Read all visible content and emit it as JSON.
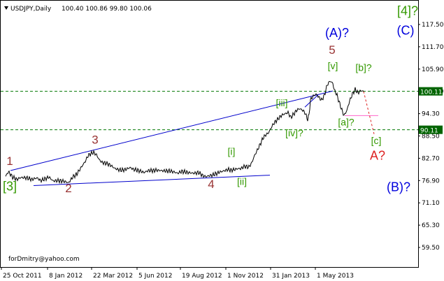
{
  "header": {
    "symbol": "USDJPY,Daily",
    "ohlc": "100.40 100.86 99.80 100.06"
  },
  "watermark": "forDmitry@yahoo.com",
  "colors": {
    "background": "#ffffff",
    "price_line": "#000000",
    "trendline": "#0000cc",
    "level_line": "#007700",
    "level_tag_bg": "#006400",
    "wave_green": "#339900",
    "wave_red": "#993333",
    "wave_blue": "#0000dd",
    "forecast_red": "#dd2222",
    "magenta": "#ff66cc"
  },
  "chart_data": {
    "type": "line",
    "price_axis": {
      "min": 56.0,
      "max": 121.5,
      "ticks": [
        "117.50",
        "111.70",
        "105.90",
        "100.10",
        "94.30",
        "88.50",
        "82.70",
        "76.90",
        "71.10",
        "65.30",
        "59.50"
      ]
    },
    "time_axis": {
      "labels": [
        "25 Oct 2011",
        "8 Jan 2012",
        "22 Mar 2012",
        "5 Jun 2012",
        "19 Aug 2012",
        "1 Nov 2012",
        "31 Jan 2013",
        "1 May 2013"
      ]
    },
    "series": [
      {
        "values": [
          [
            0,
            78.0
          ],
          [
            4,
            79.2
          ],
          [
            10,
            77.8
          ],
          [
            16,
            77.2
          ],
          [
            22,
            77.7
          ],
          [
            30,
            77.6
          ],
          [
            38,
            77.2
          ],
          [
            45,
            77.6
          ],
          [
            50,
            76.9
          ],
          [
            56,
            77.3
          ],
          [
            62,
            77.8
          ],
          [
            68,
            76.8
          ],
          [
            74,
            76.9
          ],
          [
            80,
            76.8
          ],
          [
            86,
            76.6
          ],
          [
            90,
            76.3
          ],
          [
            96,
            77.8
          ],
          [
            102,
            78.6
          ],
          [
            108,
            80.3
          ],
          [
            114,
            81.9
          ],
          [
            118,
            83.4
          ],
          [
            122,
            83.9
          ],
          [
            126,
            84.2
          ],
          [
            130,
            83.6
          ],
          [
            134,
            82.3
          ],
          [
            138,
            81.6
          ],
          [
            144,
            81.4
          ],
          [
            150,
            80.9
          ],
          [
            156,
            80.1
          ],
          [
            160,
            79.8
          ],
          [
            166,
            79.6
          ],
          [
            172,
            79.8
          ],
          [
            178,
            80.3
          ],
          [
            182,
            79.9
          ],
          [
            186,
            79.7
          ],
          [
            192,
            79.4
          ],
          [
            198,
            79.0
          ],
          [
            204,
            79.5
          ],
          [
            210,
            79.5
          ],
          [
            216,
            79.6
          ],
          [
            222,
            79.5
          ],
          [
            228,
            79.4
          ],
          [
            234,
            79.4
          ],
          [
            240,
            79.2
          ],
          [
            246,
            78.8
          ],
          [
            252,
            79.3
          ],
          [
            258,
            79.1
          ],
          [
            264,
            78.9
          ],
          [
            270,
            78.8
          ],
          [
            276,
            79.0
          ],
          [
            282,
            78.2
          ],
          [
            286,
            77.9
          ],
          [
            290,
            78.1
          ],
          [
            295,
            78.3
          ],
          [
            300,
            78.6
          ],
          [
            306,
            79.1
          ],
          [
            312,
            79.4
          ],
          [
            318,
            79.8
          ],
          [
            322,
            79.6
          ],
          [
            326,
            79.7
          ],
          [
            332,
            80.0
          ],
          [
            336,
            80.0
          ],
          [
            342,
            80.6
          ],
          [
            348,
            80.4
          ],
          [
            352,
            81.5
          ],
          [
            356,
            83.4
          ],
          [
            360,
            84.8
          ],
          [
            364,
            86.3
          ],
          [
            368,
            87.9
          ],
          [
            372,
            88.8
          ],
          [
            376,
            89.3
          ],
          [
            380,
            90.7
          ],
          [
            384,
            91.9
          ],
          [
            388,
            92.6
          ],
          [
            392,
            93.4
          ],
          [
            396,
            94.0
          ],
          [
            400,
            94.3
          ],
          [
            404,
            94.6
          ],
          [
            408,
            93.3
          ],
          [
            412,
            94.2
          ],
          [
            416,
            95.1
          ],
          [
            420,
            95.6
          ],
          [
            424,
            95.3
          ],
          [
            428,
            94.6
          ],
          [
            432,
            92.8
          ],
          [
            434,
            94.0
          ],
          [
            436,
            97.9
          ],
          [
            440,
            98.9
          ],
          [
            444,
            99.4
          ],
          [
            448,
            98.6
          ],
          [
            452,
            97.8
          ],
          [
            456,
            99.1
          ],
          [
            460,
            101.8
          ],
          [
            464,
            102.8
          ],
          [
            468,
            102.2
          ],
          [
            470,
            100.5
          ],
          [
            474,
            99.1
          ],
          [
            478,
            96.8
          ],
          [
            481,
            95.2
          ],
          [
            484,
            93.8
          ],
          [
            488,
            95.1
          ],
          [
            492,
            97.6
          ],
          [
            496,
            99.4
          ],
          [
            500,
            100.6
          ],
          [
            504,
            99.7
          ],
          [
            508,
            100.3
          ],
          [
            512,
            100.1
          ]
        ]
      }
    ],
    "levels": [
      {
        "value": 100.11,
        "label": "100.11",
        "style": "dashed"
      },
      {
        "value": 90.11,
        "label": "90.11",
        "style": "dashed"
      }
    ],
    "annotations": [
      {
        "text": "1",
        "color": "wave_red",
        "bar": 6,
        "price": 81.0,
        "size": 17
      },
      {
        "text": "[3]",
        "color": "wave_green",
        "bar": 6,
        "price": 74.3,
        "size": 18
      },
      {
        "text": "2",
        "color": "wave_red",
        "bar": 90,
        "price": 73.9,
        "size": 17
      },
      {
        "text": "3",
        "color": "wave_red",
        "bar": 128,
        "price": 86.5,
        "size": 17
      },
      {
        "text": "4",
        "color": "wave_red",
        "bar": 294,
        "price": 75.0,
        "size": 17
      },
      {
        "text": "[i]",
        "color": "wave_green",
        "bar": 323,
        "price": 83.6,
        "size": 14
      },
      {
        "text": "[ii]",
        "color": "wave_green",
        "bar": 338,
        "price": 75.8,
        "size": 14
      },
      {
        "text": "[iii]",
        "color": "wave_green",
        "bar": 395,
        "price": 96.2,
        "size": 14
      },
      {
        "text": "[iv]?",
        "color": "wave_green",
        "bar": 413,
        "price": 88.4,
        "size": 14
      },
      {
        "text": "[v]",
        "color": "wave_green",
        "bar": 468,
        "price": 105.9,
        "size": 14
      },
      {
        "text": "5",
        "color": "wave_red",
        "bar": 467,
        "price": 109.9,
        "size": 17
      },
      {
        "text": "(A)?",
        "color": "wave_blue",
        "bar": 474,
        "price": 114.2,
        "size": 18
      },
      {
        "text": "[b]?",
        "color": "wave_green",
        "bar": 512,
        "price": 105.4,
        "size": 14
      },
      {
        "text": "[a]?",
        "color": "wave_green",
        "bar": 487,
        "price": 91.2,
        "size": 14
      },
      {
        "text": "[c]",
        "color": "wave_green",
        "bar": 530,
        "price": 86.4,
        "size": 14
      },
      {
        "text": "A?",
        "color": "forecast_red",
        "bar": 532,
        "price": 82.3,
        "size": 18
      },
      {
        "text": "[4]?",
        "color": "wave_green",
        "bar": 575,
        "price": 120.0,
        "size": 18
      },
      {
        "text": "(C)",
        "color": "wave_blue",
        "bar": 572,
        "price": 114.9,
        "size": 18
      },
      {
        "text": "(B)?",
        "color": "wave_blue",
        "bar": 562,
        "price": 74.1,
        "size": 18
      }
    ],
    "trendlines": [
      {
        "color": "trendline",
        "from": [
          7,
          79.5
        ],
        "to": [
          468,
          100.2
        ]
      },
      {
        "color": "trendline",
        "from": [
          40,
          75.6
        ],
        "to": [
          378,
          78.3
        ]
      },
      {
        "color": "trendline",
        "from": [
          428,
          96.0
        ],
        "to": [
          447,
          99.2
        ]
      },
      {
        "color": "magenta",
        "from": [
          485,
          93.8
        ],
        "to": [
          533,
          93.8
        ]
      },
      {
        "color": "forecast_red",
        "from": [
          512,
          100.1
        ],
        "to": [
          527,
          89.0
        ],
        "dashed": true
      }
    ]
  }
}
